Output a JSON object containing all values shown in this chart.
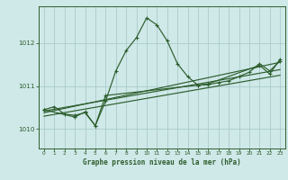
{
  "title": "Graphe pression niveau de la mer (hPa)",
  "background_color": "#cfe8e8",
  "plot_bg_color": "#cfe8e8",
  "grid_color": "#aacccc",
  "line_color": "#2d5e2d",
  "xlim": [
    -0.5,
    23.5
  ],
  "ylim": [
    1009.55,
    1012.85
  ],
  "yticks": [
    1010,
    1011,
    1012
  ],
  "xticks": [
    0,
    1,
    2,
    3,
    4,
    5,
    6,
    7,
    8,
    9,
    10,
    11,
    12,
    13,
    14,
    15,
    16,
    17,
    18,
    19,
    20,
    21,
    22,
    23
  ],
  "series1_x": [
    0,
    1,
    2,
    3,
    4,
    5,
    6,
    7,
    8,
    9,
    10,
    11,
    12,
    13,
    14,
    15,
    16,
    17,
    18,
    19,
    20,
    21,
    22,
    23
  ],
  "series1_y": [
    1010.45,
    1010.52,
    1010.35,
    1010.32,
    1010.38,
    1010.08,
    1010.65,
    1011.35,
    1011.82,
    1012.12,
    1012.58,
    1012.42,
    1012.05,
    1011.52,
    1011.22,
    1011.02,
    1011.03,
    1011.08,
    1011.12,
    1011.22,
    1011.32,
    1011.52,
    1011.35,
    1011.58
  ],
  "series2_x": [
    0,
    3,
    4,
    5,
    6,
    15,
    16,
    21,
    22,
    23
  ],
  "series2_y": [
    1010.45,
    1010.28,
    1010.4,
    1010.08,
    1010.78,
    1011.02,
    1011.05,
    1011.48,
    1011.28,
    1011.62
  ],
  "series3_x": [
    0,
    23
  ],
  "series3_y": [
    1010.42,
    1011.38
  ],
  "series4_x": [
    0,
    23
  ],
  "series4_y": [
    1010.38,
    1011.55
  ],
  "series5_x": [
    0,
    23
  ],
  "series5_y": [
    1010.3,
    1011.25
  ]
}
